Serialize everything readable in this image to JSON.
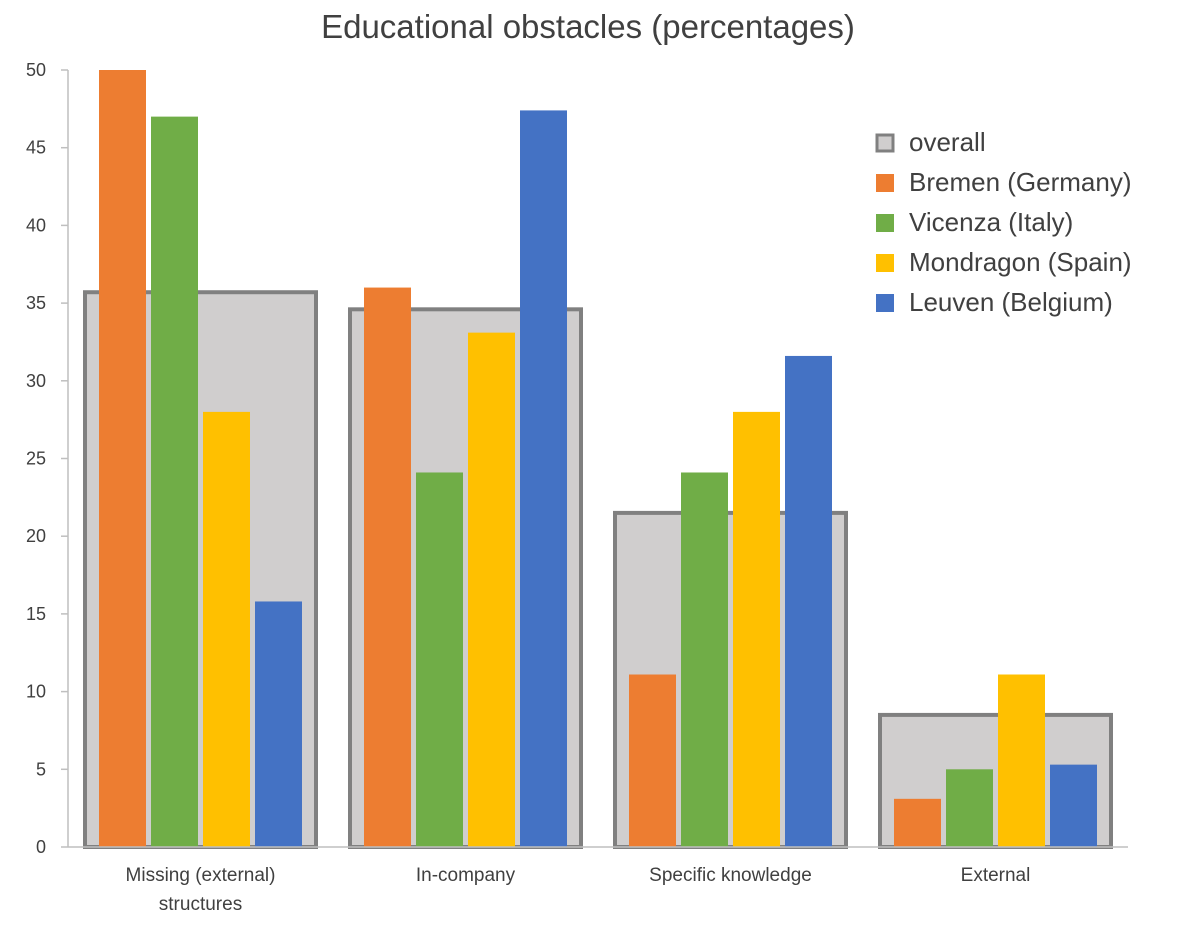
{
  "chart_data": {
    "type": "bar",
    "title": "Educational obstacles (percentages)",
    "xlabel": "",
    "ylabel": "",
    "ylim": [
      0,
      50
    ],
    "yticks": [
      0,
      5,
      10,
      15,
      20,
      25,
      30,
      35,
      40,
      45,
      50
    ],
    "categories": [
      [
        "Missing (external)",
        "structures"
      ],
      [
        "In-company"
      ],
      [
        "Specific knowledge"
      ],
      [
        "External"
      ]
    ],
    "overall": {
      "name": "overall",
      "color": "#d0cece",
      "border": "#808080",
      "values": [
        35.7,
        34.6,
        21.5,
        8.5
      ]
    },
    "series": [
      {
        "name": "Bremen (Germany)",
        "color": "#ed7d31",
        "values": [
          50,
          36,
          11.1,
          3.1
        ]
      },
      {
        "name": "Vicenza (Italy)",
        "color": "#70ad47",
        "values": [
          47,
          24.1,
          24.1,
          5
        ]
      },
      {
        "name": "Mondragon (Spain)",
        "color": "#ffc000",
        "values": [
          28,
          33.1,
          28,
          11.1
        ]
      },
      {
        "name": "Leuven (Belgium)",
        "color": "#4472c4",
        "values": [
          15.8,
          47.4,
          31.6,
          5.3
        ]
      }
    ],
    "legend": "right",
    "grid": false
  }
}
